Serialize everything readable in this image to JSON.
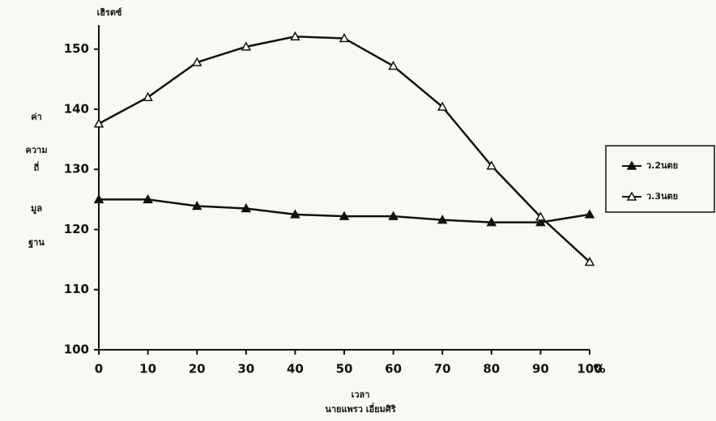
{
  "chart_data": {
    "type": "line",
    "y_unit": "เฮิรตซ์",
    "y_label": [
      "ค่า",
      "ความ",
      "ถี่",
      "มูล",
      "ฐาน"
    ],
    "x_label": "เวลา",
    "x_unit": "%",
    "author": "นายแพรว เอี่ยมศิริ",
    "x": [
      0,
      10,
      20,
      30,
      40,
      50,
      60,
      70,
      80,
      90,
      100
    ],
    "xlim": [
      0,
      100
    ],
    "xticks": [
      0,
      10,
      20,
      30,
      40,
      50,
      60,
      70,
      80,
      90,
      100
    ],
    "ylim": [
      100,
      154
    ],
    "yticks": [
      100,
      110,
      120,
      130,
      140,
      150
    ],
    "legend": "right",
    "series": [
      {
        "name": "ว.2นตย",
        "color": "#111111",
        "marker": "filled-triangle",
        "values": [
          125,
          125,
          123.9,
          123.5,
          122.5,
          122.2,
          122.2,
          121.6,
          121.2,
          121.2,
          122.5
        ]
      },
      {
        "name": "ว.3นตย",
        "color": "#111111",
        "marker": "open-triangle",
        "values": [
          137.6,
          142,
          147.8,
          150.4,
          152.1,
          151.8,
          147.2,
          140.4,
          130.6,
          122.1,
          114.6
        ]
      }
    ]
  }
}
